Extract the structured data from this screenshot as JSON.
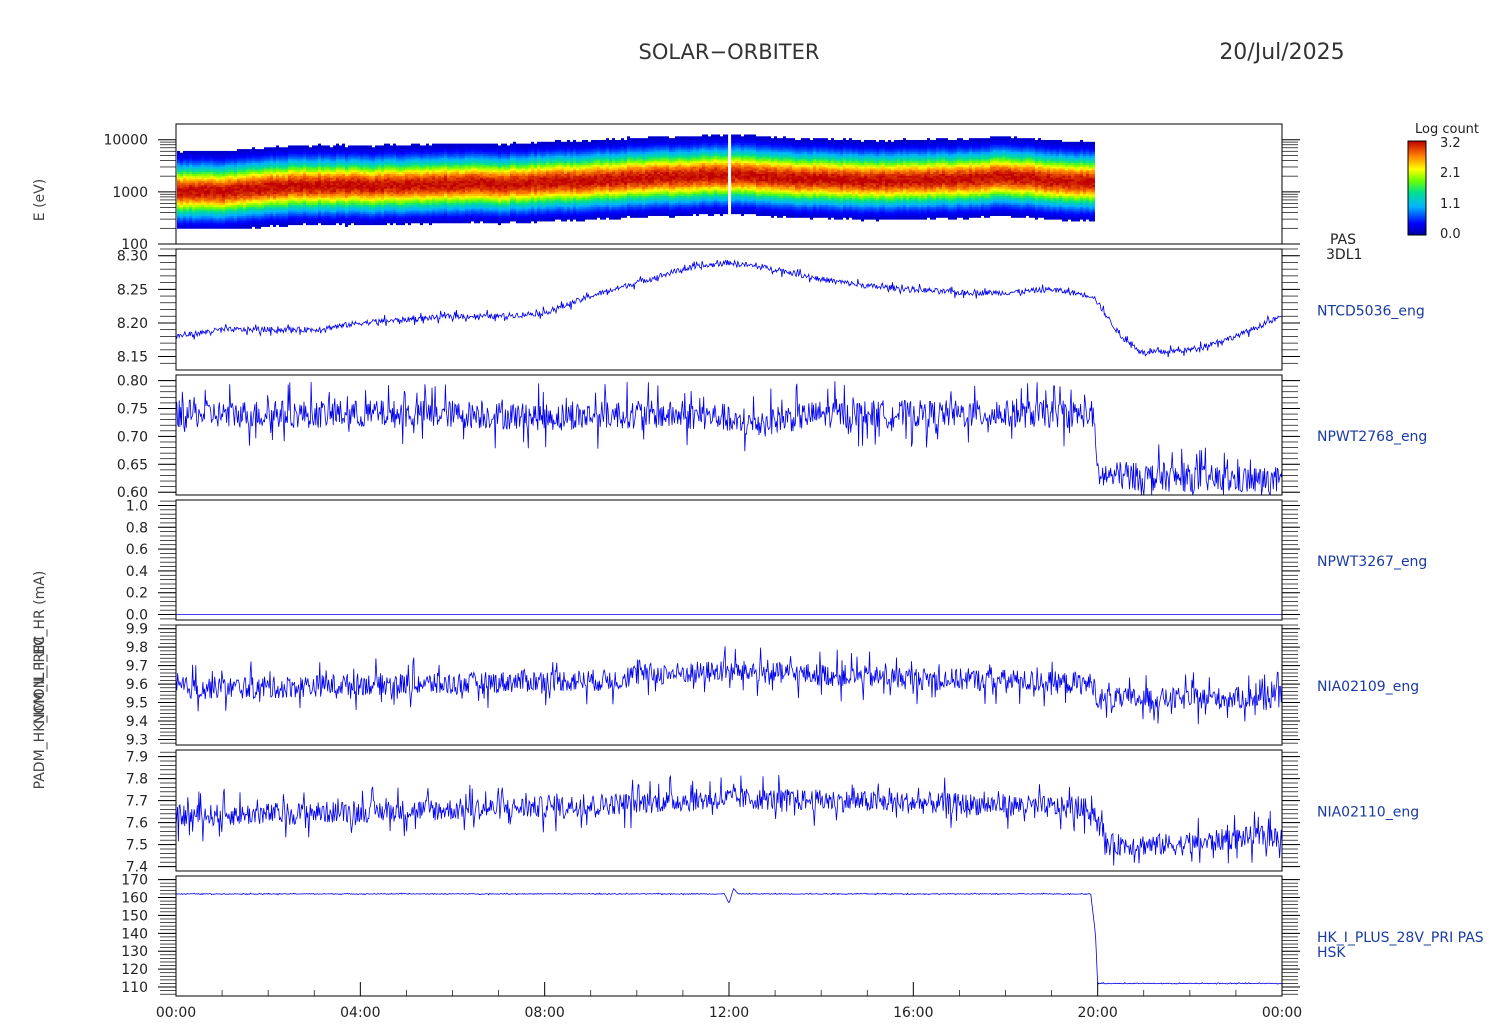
{
  "header": {
    "title": "SOLAR−ORBITER",
    "date": "20/Jul/2025"
  },
  "colorbar": {
    "title": "Log count",
    "ticks": [
      "3.2",
      "2.1",
      "1.1",
      "0.0"
    ]
  },
  "x_tick_labels": [
    "00:00",
    "04:00",
    "08:00",
    "12:00",
    "16:00",
    "20:00",
    "00:00"
  ],
  "chart_data": [
    {
      "type": "heatmap",
      "panel_label": [
        "PAS",
        "3DL1"
      ],
      "y_axis_label": "E (eV)",
      "y_log": true,
      "ylim": [
        100,
        20000
      ],
      "y_ticks": [
        100,
        1000,
        10000
      ],
      "y_tick_labels": [
        "100",
        "1000",
        "10000"
      ],
      "x_hours_range": [
        0,
        24
      ],
      "data_end_hours": 19.9,
      "peak_energy_ev": [
        [
          0,
          1000
        ],
        [
          1,
          1000
        ],
        [
          2,
          1200
        ],
        [
          3,
          1300
        ],
        [
          4,
          1250
        ],
        [
          5,
          1300
        ],
        [
          6,
          1400
        ],
        [
          7,
          1350
        ],
        [
          8,
          1500
        ],
        [
          9,
          1600
        ],
        [
          10,
          1800
        ],
        [
          11,
          1900
        ],
        [
          12,
          2100
        ],
        [
          13,
          1800
        ],
        [
          14,
          1700
        ],
        [
          15,
          1600
        ],
        [
          16,
          1650
        ],
        [
          17,
          1700
        ],
        [
          18,
          1900
        ],
        [
          19,
          1600
        ],
        [
          19.9,
          1500
        ]
      ],
      "colorscale_range": [
        0.0,
        3.2
      ]
    },
    {
      "type": "line",
      "series_label": "NTCD5036_eng",
      "ylim": [
        8.13,
        8.31
      ],
      "y_ticks": [
        8.15,
        8.2,
        8.25,
        8.3
      ],
      "y_tick_labels": [
        "8.15",
        "8.20",
        "8.25",
        "8.30"
      ],
      "x": [
        0,
        1,
        2,
        3,
        4,
        5,
        6,
        7,
        8,
        9,
        10,
        11,
        12,
        13,
        14,
        15,
        16,
        17,
        18,
        19,
        19.9,
        20.5,
        21,
        22,
        23,
        24
      ],
      "y": [
        8.18,
        8.19,
        8.19,
        8.19,
        8.2,
        8.205,
        8.21,
        8.21,
        8.215,
        8.24,
        8.26,
        8.28,
        8.29,
        8.28,
        8.265,
        8.255,
        8.25,
        8.245,
        8.245,
        8.25,
        8.24,
        8.18,
        8.155,
        8.16,
        8.18,
        8.21
      ],
      "noise": 0.004
    },
    {
      "type": "line",
      "series_label": "NPWT2768_eng",
      "ylim": [
        0.595,
        0.81
      ],
      "y_ticks": [
        0.6,
        0.65,
        0.7,
        0.75,
        0.8
      ],
      "y_tick_labels": [
        "0.60",
        "0.65",
        "0.70",
        "0.75",
        "0.80"
      ],
      "x": [
        0,
        2,
        4,
        6,
        8,
        10,
        11.9,
        12.1,
        14,
        16,
        18,
        19.9,
        20,
        22,
        24
      ],
      "y": [
        0.74,
        0.74,
        0.74,
        0.74,
        0.735,
        0.74,
        0.735,
        0.72,
        0.74,
        0.74,
        0.74,
        0.74,
        0.63,
        0.625,
        0.62
      ],
      "noise": 0.025
    },
    {
      "type": "line",
      "series_label": "NPWT3267_eng",
      "ylim": [
        -0.05,
        1.05
      ],
      "y_ticks": [
        0,
        0.2,
        0.4,
        0.6,
        0.8,
        1
      ],
      "y_tick_labels": [
        "0.0",
        "0.2",
        "0.4",
        "0.6",
        "0.8",
        "1.0"
      ],
      "x": [
        0,
        24
      ],
      "y": [
        0,
        0
      ],
      "noise": 0
    },
    {
      "type": "line",
      "series_label": "NIA02109_eng",
      "y_axis_label": "NCM_IL_I_EC",
      "ylim": [
        9.27,
        9.92
      ],
      "y_ticks": [
        9.3,
        9.4,
        9.5,
        9.6,
        9.7,
        9.8,
        9.9
      ],
      "y_tick_labels": [
        "9.3",
        "9.4",
        "9.5",
        "9.6",
        "9.7",
        "9.8",
        "9.9"
      ],
      "x": [
        0,
        2,
        4,
        6,
        8,
        9.5,
        10,
        12,
        14,
        16,
        18,
        19.9,
        20,
        22,
        24
      ],
      "y": [
        9.58,
        9.58,
        9.6,
        9.6,
        9.62,
        9.62,
        9.65,
        9.67,
        9.65,
        9.63,
        9.62,
        9.6,
        9.52,
        9.52,
        9.53
      ],
      "noise": 0.06
    },
    {
      "type": "line",
      "series_label": "NIA02110_eng",
      "y_axis_label": "NCM_IL_I_EC",
      "ylim": [
        7.38,
        7.93
      ],
      "y_ticks": [
        7.4,
        7.5,
        7.6,
        7.7,
        7.8,
        7.9
      ],
      "y_tick_labels": [
        "7.4",
        "7.5",
        "7.6",
        "7.7",
        "7.8",
        "7.9"
      ],
      "x": [
        0,
        2,
        4,
        6,
        8,
        10,
        12,
        14,
        16,
        18,
        19.9,
        20.2,
        22,
        23,
        24
      ],
      "y": [
        7.63,
        7.64,
        7.65,
        7.66,
        7.67,
        7.69,
        7.71,
        7.7,
        7.69,
        7.68,
        7.66,
        7.5,
        7.5,
        7.53,
        7.54
      ],
      "noise": 0.05
    },
    {
      "type": "line",
      "series_label": [
        "HK_I_PLUS_28V_PRI PAS",
        "HSK"
      ],
      "y_axis_label": "PADM_HK_IMON_PRIM_HR (mA)",
      "ylim": [
        105,
        172
      ],
      "y_ticks": [
        110,
        120,
        130,
        140,
        150,
        160,
        170
      ],
      "y_tick_labels": [
        "110",
        "120",
        "130",
        "140",
        "150",
        "160",
        "170"
      ],
      "x": [
        0,
        11.9,
        12.0,
        12.1,
        12.2,
        19.85,
        19.95,
        20.0,
        24
      ],
      "y": [
        162,
        162,
        157,
        165,
        162,
        162,
        140,
        112,
        112
      ],
      "noise": 0.2
    }
  ]
}
